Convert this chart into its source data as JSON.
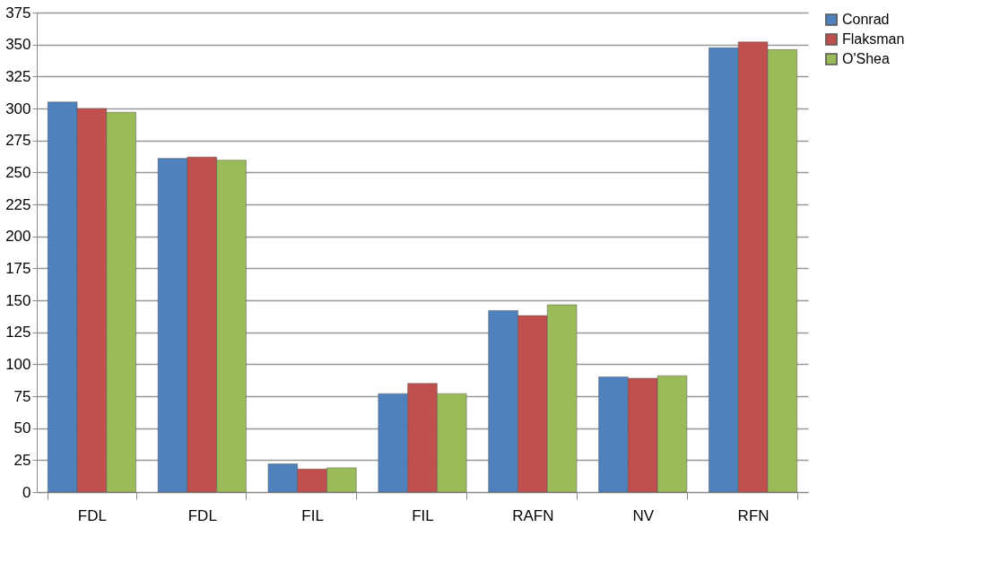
{
  "chart_data": {
    "type": "bar",
    "categories": [
      "FDL",
      "FDL",
      "FIL",
      "FIL",
      "RAFN",
      "NV",
      "RFN"
    ],
    "series": [
      {
        "name": "Conrad",
        "color": "#4f81bd",
        "values": [
          305,
          261,
          22,
          77,
          142,
          90,
          347.5
        ]
      },
      {
        "name": "Flaksman",
        "color": "#c0504d",
        "values": [
          300,
          262,
          18,
          85,
          138,
          89,
          352
        ]
      },
      {
        "name": "O'Shea",
        "color": "#9bbb59",
        "values": [
          297,
          259.5,
          19,
          77,
          146.5,
          91,
          346
        ]
      }
    ],
    "ylim": [
      0,
      375
    ],
    "yticks": [
      0,
      25,
      50,
      75,
      100,
      125,
      150,
      175,
      200,
      225,
      250,
      275,
      300,
      325,
      350,
      375
    ],
    "grid": "y",
    "legend": "right"
  }
}
